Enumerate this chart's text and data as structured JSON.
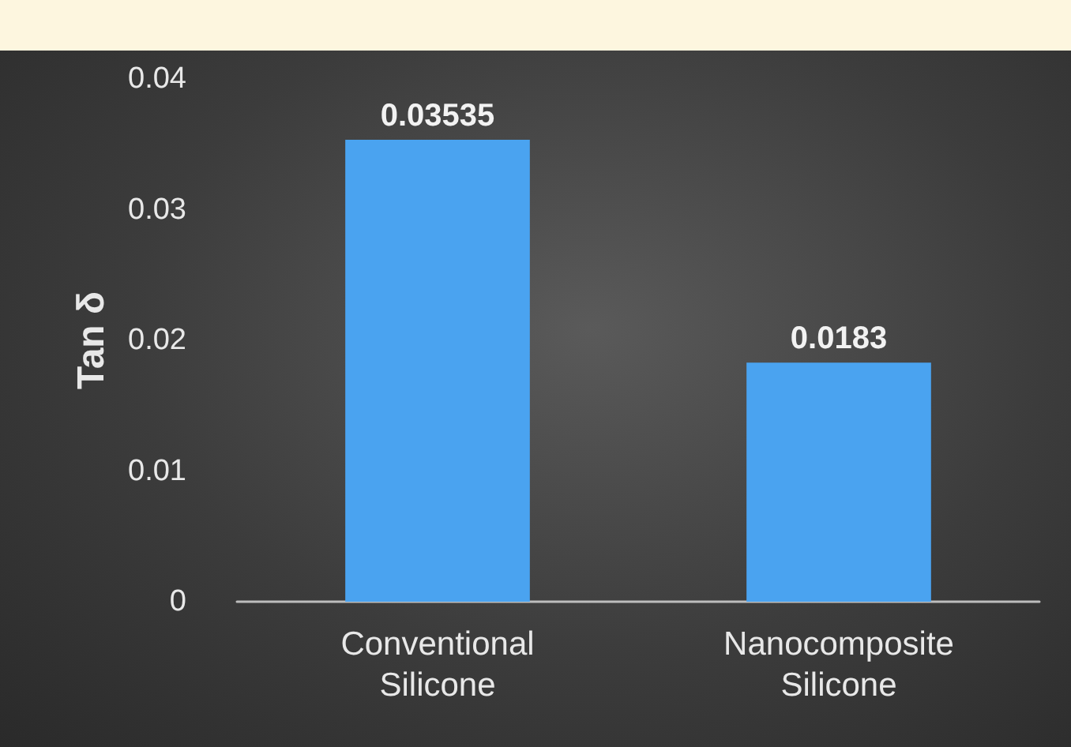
{
  "chart_data": {
    "type": "bar",
    "ylabel": "Tan δ",
    "categories": [
      "Conventional\nSilicone",
      "Nanocomposite\nSilicone"
    ],
    "values": [
      0.03535,
      0.0183
    ],
    "color": "#4aa3f0",
    "ylim": [
      0,
      0.04
    ],
    "yticks": [
      0,
      0.01,
      0.02,
      0.03,
      0.04
    ],
    "data_labels": true,
    "grid": false
  }
}
